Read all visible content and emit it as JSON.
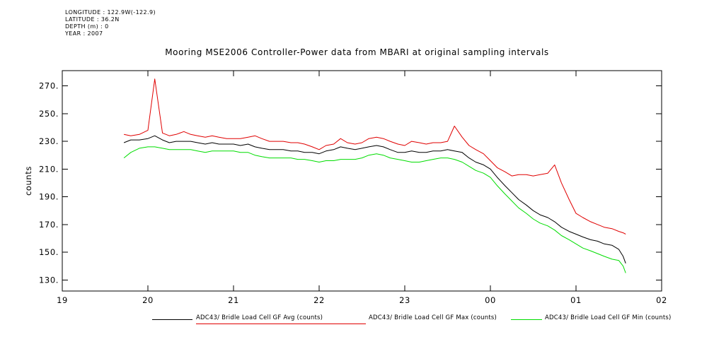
{
  "metadata": {
    "lines": [
      "LONGITUDE : 122.9W(-122.9)",
      "LATITUDE : 36.2N",
      "DEPTH (m) : 0",
      "YEAR : 2007"
    ]
  },
  "chart_data": {
    "type": "line",
    "title": "Mooring MSE2006 Controller-Power data from MBARI at original sampling intervals",
    "xlabel": "",
    "ylabel": "counts",
    "grid": false,
    "legend_position": "bottom",
    "xlim": [
      19,
      26
    ],
    "ylim": [
      122,
      281
    ],
    "x_ticks": {
      "values": [
        19,
        20,
        21,
        22,
        23,
        24,
        25,
        26
      ],
      "labels": [
        "19",
        "20",
        "21",
        "22",
        "23",
        "00",
        "01",
        "02"
      ]
    },
    "y_ticks": {
      "values": [
        130,
        150,
        170,
        190,
        210,
        230,
        250,
        270
      ],
      "labels": [
        "130.",
        "150.",
        "170.",
        "190.",
        "210.",
        "230.",
        "250.",
        "270."
      ]
    },
    "x": [
      19.72,
      19.8,
      19.9,
      20,
      20.08,
      20.17,
      20.25,
      20.33,
      20.42,
      20.5,
      20.58,
      20.67,
      20.75,
      20.83,
      20.92,
      21,
      21.08,
      21.17,
      21.25,
      21.33,
      21.42,
      21.5,
      21.58,
      21.67,
      21.75,
      21.83,
      21.92,
      22,
      22.08,
      22.17,
      22.25,
      22.33,
      22.42,
      22.5,
      22.58,
      22.67,
      22.75,
      22.83,
      22.92,
      23,
      23.08,
      23.17,
      23.25,
      23.33,
      23.42,
      23.5,
      23.58,
      23.67,
      23.75,
      23.83,
      23.92,
      24,
      24.08,
      24.17,
      24.25,
      24.33,
      24.42,
      24.5,
      24.58,
      24.67,
      24.75,
      24.83,
      24.92,
      25,
      25.08,
      25.17,
      25.25,
      25.33,
      25.42,
      25.5,
      25.55,
      25.58
    ],
    "series": [
      {
        "name": "ADC43/ Bridle Load Cell GF Avg (counts)",
        "color": "#000000",
        "values": [
          229,
          231,
          231,
          232,
          234,
          231,
          229,
          230,
          230,
          230,
          229,
          228,
          229,
          228,
          228,
          228,
          227,
          228,
          226,
          225,
          224,
          224,
          224,
          223,
          223,
          222,
          222,
          221,
          223,
          224,
          226,
          225,
          224,
          225,
          226,
          227,
          226,
          224,
          222,
          222,
          223,
          222,
          222,
          223,
          223,
          224,
          223,
          222,
          218,
          215,
          213,
          210,
          204,
          198,
          193,
          188,
          184,
          180,
          177,
          175,
          172,
          168,
          165,
          163,
          161,
          159,
          158,
          156,
          155,
          152,
          147,
          142
        ]
      },
      {
        "name": "ADC43/ Bridle Load Cell GF Max (counts)",
        "color": "#e00000",
        "values": [
          235,
          234,
          235,
          238,
          275,
          236,
          234,
          235,
          237,
          235,
          234,
          233,
          234,
          233,
          232,
          232,
          232,
          233,
          234,
          232,
          230,
          230,
          230,
          229,
          229,
          228,
          226,
          224,
          227,
          228,
          232,
          229,
          228,
          229,
          232,
          233,
          232,
          230,
          228,
          227,
          230,
          229,
          228,
          229,
          229,
          230,
          241,
          233,
          227,
          224,
          221,
          216,
          211,
          208,
          205,
          206,
          206,
          205,
          206,
          207,
          213,
          200,
          188,
          178,
          175,
          172,
          170,
          168,
          167,
          165,
          164,
          163
        ]
      },
      {
        "name": "ADC43/ Bridle Load Cell GF Min (counts)",
        "color": "#00dd00",
        "values": [
          218,
          222,
          225,
          226,
          226,
          225,
          224,
          224,
          224,
          224,
          223,
          222,
          223,
          223,
          223,
          223,
          222,
          222,
          220,
          219,
          218,
          218,
          218,
          218,
          217,
          217,
          216,
          215,
          216,
          216,
          217,
          217,
          217,
          218,
          220,
          221,
          220,
          218,
          217,
          216,
          215,
          215,
          216,
          217,
          218,
          218,
          217,
          215,
          212,
          209,
          207,
          204,
          198,
          192,
          187,
          182,
          178,
          174,
          171,
          169,
          166,
          162,
          159,
          156,
          153,
          151,
          149,
          147,
          145,
          144,
          140,
          135
        ]
      }
    ]
  }
}
